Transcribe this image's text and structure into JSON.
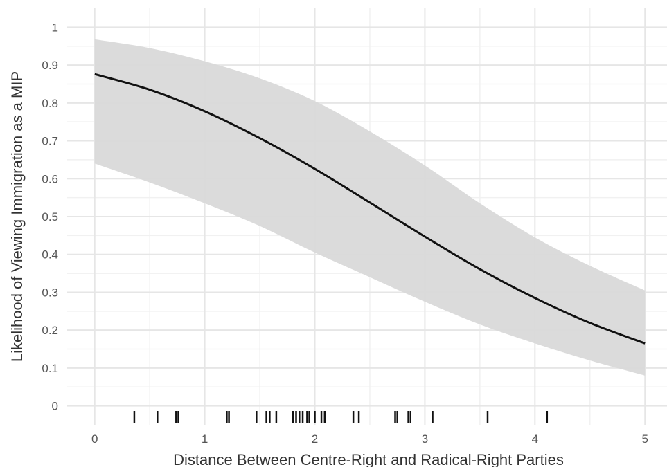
{
  "chart_data": {
    "type": "line",
    "xlabel": "Distance Between Centre-Right and Radical-Right Parties",
    "ylabel": "Likelihood of Viewing Immigration as a MIP",
    "xlim": [
      -0.25,
      5.2
    ],
    "ylim": [
      -0.05,
      1.05
    ],
    "x_ticks": [
      "0",
      "1",
      "2",
      "3",
      "4",
      "5"
    ],
    "y_ticks": [
      "0",
      "0.1",
      "0.2",
      "0.3",
      "0.4",
      "0.5",
      "0.6",
      "0.7",
      "0.8",
      "0.9",
      "1"
    ],
    "grid": true,
    "colors": {
      "line": "#111111",
      "ribbon": "#d9d9d9",
      "grid": "#e6e6e6",
      "panel": "#ffffff"
    },
    "series": [
      {
        "x": [
          0,
          0.5,
          1,
          1.5,
          2,
          2.5,
          3,
          3.5,
          4,
          4.5,
          5
        ],
        "y": [
          0.876,
          0.835,
          0.778,
          0.707,
          0.626,
          0.537,
          0.447,
          0.361,
          0.285,
          0.219,
          0.165
        ],
        "lower": [
          0.64,
          0.59,
          0.535,
          0.475,
          0.405,
          0.34,
          0.275,
          0.215,
          0.165,
          0.12,
          0.08
        ],
        "upper": [
          0.968,
          0.945,
          0.91,
          0.865,
          0.805,
          0.725,
          0.635,
          0.535,
          0.445,
          0.37,
          0.305
        ]
      }
    ],
    "rug_x": [
      0.36,
      0.57,
      0.74,
      0.76,
      1.2,
      1.22,
      1.47,
      1.56,
      1.59,
      1.65,
      1.8,
      1.83,
      1.86,
      1.89,
      1.93,
      1.95,
      2.0,
      2.06,
      2.09,
      2.35,
      2.4,
      2.73,
      2.75,
      2.85,
      2.87,
      3.07,
      3.57,
      4.11
    ]
  }
}
